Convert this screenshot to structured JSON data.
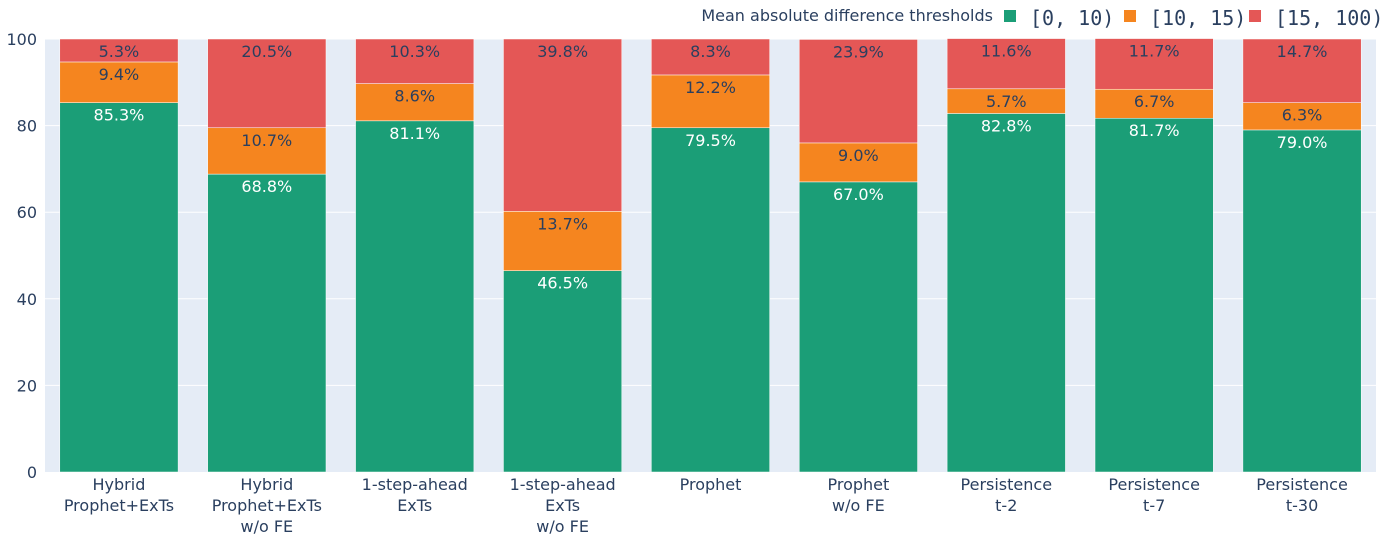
{
  "chart_data": {
    "type": "bar",
    "stacked": true,
    "legend_title": "Mean absolute difference thresholds",
    "legend_position": "top-right",
    "categories": [
      [
        "Hybrid",
        "Prophet+ExTs"
      ],
      [
        "Hybrid",
        "Prophet+ExTs",
        "w/o FE"
      ],
      [
        "1-step-ahead",
        "ExTs"
      ],
      [
        "1-step-ahead",
        "ExTs",
        "w/o FE"
      ],
      [
        "Prophet"
      ],
      [
        "Prophet",
        "w/o FE"
      ],
      [
        "Persistence",
        "t-2"
      ],
      [
        "Persistence",
        "t-7"
      ],
      [
        "Persistence",
        "t-30"
      ]
    ],
    "series": [
      {
        "name": "[0, 10)",
        "color": "#1b9e77",
        "label_color": "#ffffff",
        "values": [
          85.3,
          68.8,
          81.1,
          46.5,
          79.5,
          67.0,
          82.8,
          81.7,
          79.0
        ],
        "labels": [
          "85.3%",
          "68.8%",
          "81.1%",
          "46.5%",
          "79.5%",
          "67.0%",
          "82.8%",
          "81.7%",
          "79.0%"
        ]
      },
      {
        "name": "[10, 15)",
        "color": "#f5851f",
        "label_color": "#2a3f5f",
        "values": [
          9.4,
          10.7,
          8.6,
          13.7,
          12.2,
          9.0,
          5.7,
          6.7,
          6.3
        ],
        "labels": [
          "9.4%",
          "10.7%",
          "8.6%",
          "13.7%",
          "12.2%",
          "9.0%",
          "5.7%",
          "6.7%",
          "6.3%"
        ]
      },
      {
        "name": "[15, 100)",
        "color": "#e45756",
        "label_color": "#2a3f5f",
        "values": [
          5.3,
          20.5,
          10.3,
          39.8,
          8.3,
          23.9,
          11.6,
          11.7,
          14.7
        ],
        "labels": [
          "5.3%",
          "20.5%",
          "10.3%",
          "39.8%",
          "8.3%",
          "23.9%",
          "11.6%",
          "11.7%",
          "14.7%"
        ]
      }
    ],
    "ylim": [
      0,
      100
    ],
    "yticks": [
      0,
      20,
      40,
      60,
      80,
      100
    ],
    "ytick_labels": [
      "0",
      "20",
      "40",
      "60",
      "80",
      "100"
    ],
    "xlabel": "",
    "ylabel": "",
    "grid": true,
    "plot_bg": "#e5ecf6",
    "grid_color": "#ffffff"
  }
}
